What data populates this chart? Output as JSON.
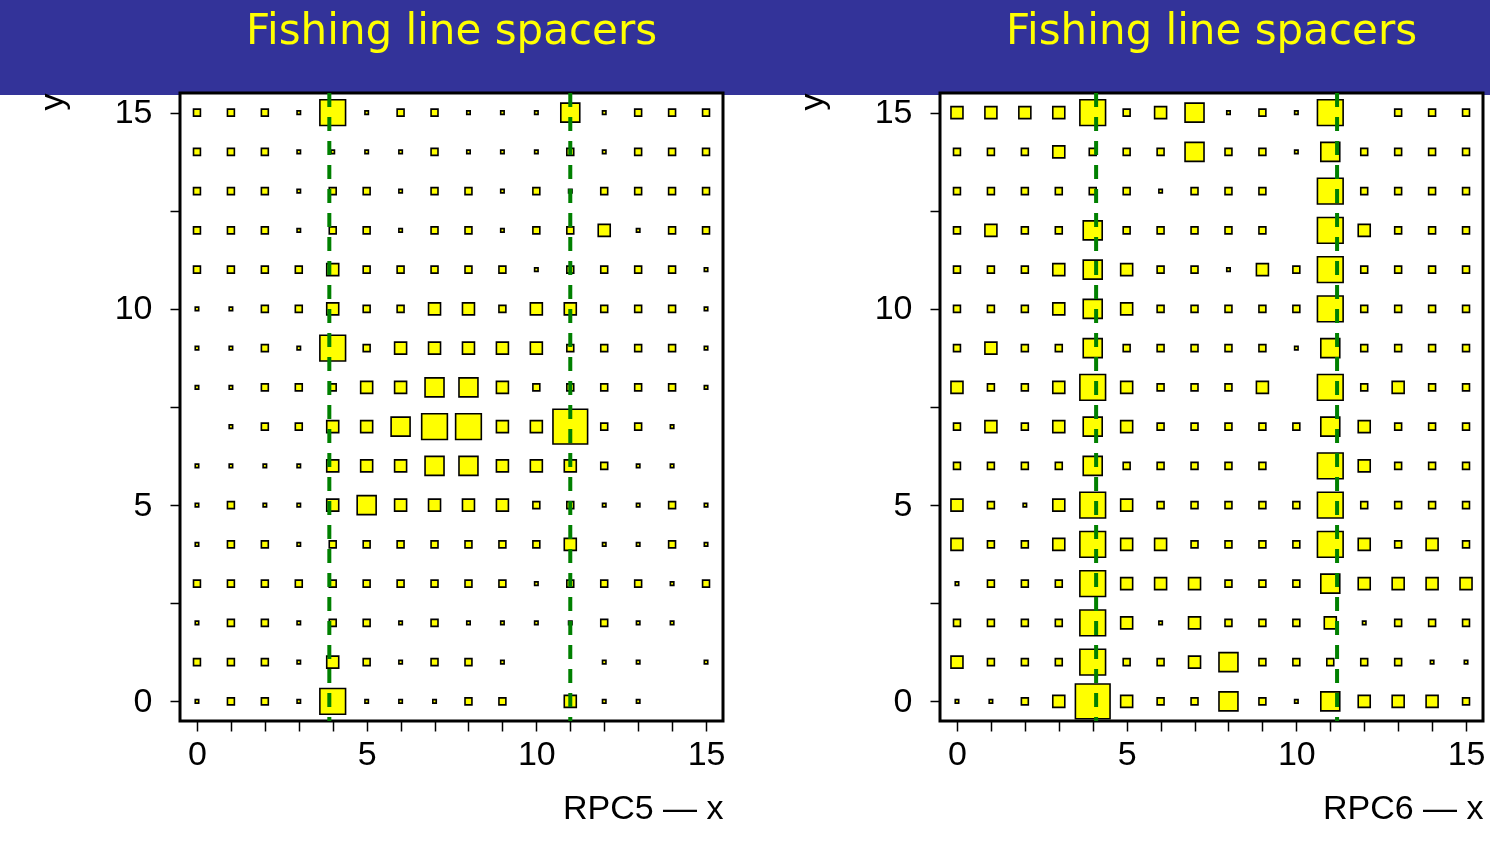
{
  "chart_data": [
    {
      "type": "bubble",
      "title": "Fishing line spacers",
      "xlabel": "RPC5 — x",
      "ylabel": "y",
      "marker": "square",
      "grid": false,
      "legend": false,
      "xlim": [
        -0.5,
        15.5
      ],
      "ylim": [
        -0.5,
        15.5
      ],
      "xticks": [
        0,
        {
          "value": 1,
          "label": null
        },
        {
          "value": 2,
          "label": null
        },
        {
          "value": 3,
          "label": null
        },
        {
          "value": 4,
          "label": null
        },
        5,
        {
          "value": 6,
          "label": null
        },
        {
          "value": 7,
          "label": null
        },
        {
          "value": 8,
          "label": null
        },
        {
          "value": 9,
          "label": null
        },
        10,
        {
          "value": 11,
          "label": null
        },
        {
          "value": 12,
          "label": null
        },
        {
          "value": 13,
          "label": null
        },
        {
          "value": 14,
          "label": null
        },
        15
      ],
      "yticks": [
        0,
        {
          "value": 2.5,
          "label": null
        },
        5,
        {
          "value": 7.5,
          "label": null
        },
        10,
        {
          "value": 12.5,
          "label": null
        },
        15
      ],
      "ref_lines": [
        {
          "axis": "x",
          "value": 3.9,
          "color": "#008000",
          "line_style": "dashed"
        },
        {
          "axis": "x",
          "value": 11.0,
          "color": "#008000",
          "line_style": "dashed"
        }
      ],
      "series": [
        {
          "color": "#ffff00",
          "x": [
            0,
            1,
            2,
            3,
            4,
            5,
            6,
            7,
            8,
            9,
            10,
            11,
            12,
            13,
            14,
            15,
            0,
            1,
            2,
            3,
            4,
            5,
            6,
            7,
            8,
            9,
            10,
            11,
            12,
            13,
            14,
            15,
            0,
            1,
            2,
            3,
            4,
            5,
            6,
            7,
            8,
            9,
            10,
            11,
            12,
            13,
            14,
            15,
            0,
            1,
            2,
            3,
            4,
            5,
            6,
            7,
            8,
            9,
            10,
            11,
            12,
            13,
            14,
            15,
            0,
            1,
            2,
            3,
            4,
            5,
            6,
            7,
            8,
            9,
            10,
            11,
            12,
            13,
            14,
            15,
            0,
            1,
            2,
            3,
            4,
            5,
            6,
            7,
            8,
            9,
            10,
            11,
            12,
            13,
            14,
            15,
            0,
            1,
            2,
            3,
            4,
            5,
            6,
            7,
            8,
            9,
            10,
            11,
            12,
            13,
            14,
            15,
            0,
            1,
            2,
            3,
            4,
            5,
            6,
            7,
            8,
            9,
            10,
            11,
            12,
            13,
            14,
            15,
            1,
            2,
            3,
            4,
            5,
            6,
            7,
            8,
            9,
            10,
            11,
            12,
            13,
            14,
            0,
            1,
            2,
            3,
            4,
            5,
            6,
            7,
            8,
            9,
            10,
            11,
            12,
            13,
            14,
            0,
            1,
            2,
            3,
            4,
            5,
            6,
            7,
            8,
            9,
            10,
            11,
            12,
            13,
            14,
            15,
            0,
            1,
            2,
            3,
            4,
            5,
            6,
            7,
            8,
            9,
            10,
            11,
            12,
            13,
            14,
            15,
            0,
            1,
            2,
            3,
            4,
            5,
            6,
            7,
            8,
            9,
            10,
            11,
            12,
            13,
            14,
            15,
            0,
            1,
            2,
            3,
            4,
            5,
            6,
            7,
            8,
            9,
            10,
            11,
            12,
            13,
            14,
            0,
            1,
            2,
            3,
            4,
            5,
            6,
            7,
            8,
            9,
            12,
            13,
            15,
            0,
            1,
            2,
            3,
            4,
            5,
            6,
            7,
            8,
            9,
            11,
            12,
            13
          ],
          "values": [
            15,
            15,
            15,
            15,
            15,
            15,
            15,
            15,
            15,
            15,
            15,
            15,
            15,
            15,
            15,
            15,
            14,
            14,
            14,
            14,
            14,
            14,
            14,
            14,
            14,
            14,
            14,
            14,
            14,
            14,
            14,
            14,
            13,
            13,
            13,
            13,
            13,
            13,
            13,
            13,
            13,
            13,
            13,
            13,
            13,
            13,
            13,
            13,
            12,
            12,
            12,
            12,
            12,
            12,
            12,
            12,
            12,
            12,
            12,
            12,
            12,
            12,
            12,
            12,
            11,
            11,
            11,
            11,
            11,
            11,
            11,
            11,
            11,
            11,
            11,
            11,
            11,
            11,
            11,
            11,
            10,
            10,
            10,
            10,
            10,
            10,
            10,
            10,
            10,
            10,
            10,
            10,
            10,
            10,
            10,
            10,
            9,
            9,
            9,
            9,
            9,
            9,
            9,
            9,
            9,
            9,
            9,
            9,
            9,
            9,
            9,
            9,
            8,
            8,
            8,
            8,
            8,
            8,
            8,
            8,
            8,
            8,
            8,
            8,
            8,
            8,
            8,
            8,
            7,
            7,
            7,
            7,
            7,
            7,
            7,
            7,
            7,
            7,
            7,
            7,
            7,
            7,
            6,
            6,
            6,
            6,
            6,
            6,
            6,
            6,
            6,
            6,
            6,
            6,
            6,
            6,
            6,
            5,
            5,
            5,
            5,
            5,
            5,
            5,
            5,
            5,
            5,
            5,
            5,
            5,
            5,
            5,
            5,
            4,
            4,
            4,
            4,
            4,
            4,
            4,
            4,
            4,
            4,
            4,
            4,
            4,
            4,
            4,
            4,
            3,
            3,
            3,
            3,
            3,
            3,
            3,
            3,
            3,
            3,
            3,
            3,
            3,
            3,
            3,
            3,
            2,
            2,
            2,
            2,
            2,
            2,
            2,
            2,
            2,
            2,
            2,
            2,
            2,
            2,
            2,
            1,
            1,
            1,
            1,
            1,
            1,
            1,
            1,
            1,
            1,
            1,
            1,
            1,
            0,
            0,
            0,
            0,
            0,
            0,
            0,
            0,
            0,
            0,
            0,
            0,
            0
          ],
          "sizes": [
            0.04,
            0.04,
            0.04,
            0.01,
            0.55,
            0.01,
            0.04,
            0.04,
            0.01,
            0.01,
            0.01,
            0.3,
            0.01,
            0.04,
            0.04,
            0.04,
            0.04,
            0.04,
            0.04,
            0.01,
            0.01,
            0.01,
            0.01,
            0.04,
            0.01,
            0.01,
            0.01,
            0.04,
            0.01,
            0.04,
            0.04,
            0.04,
            0.04,
            0.04,
            0.04,
            0.01,
            0.04,
            0.04,
            0.01,
            0.04,
            0.04,
            0.01,
            0.04,
            0.01,
            0.04,
            0.04,
            0.04,
            0.04,
            0.04,
            0.04,
            0.04,
            0.01,
            0.04,
            0.04,
            0.01,
            0.04,
            0.04,
            0.01,
            0.04,
            0.04,
            0.12,
            0.01,
            0.04,
            0.04,
            0.04,
            0.04,
            0.04,
            0.04,
            0.12,
            0.04,
            0.04,
            0.04,
            0.04,
            0.04,
            0.01,
            0.04,
            0.04,
            0.04,
            0.04,
            0.01,
            0.01,
            0.01,
            0.04,
            0.04,
            0.12,
            0.04,
            0.04,
            0.12,
            0.12,
            0.04,
            0.12,
            0.12,
            0.04,
            0.04,
            0.04,
            0.01,
            0.01,
            0.01,
            0.04,
            0.01,
            0.55,
            0.04,
            0.12,
            0.12,
            0.12,
            0.12,
            0.12,
            0.04,
            0.04,
            0.04,
            0.04,
            0.01,
            0.01,
            0.01,
            0.04,
            0.04,
            0.04,
            0.12,
            0.12,
            0.3,
            0.3,
            0.12,
            0.04,
            0.04,
            0.04,
            0.04,
            0.04,
            0.01,
            0.01,
            0.04,
            0.04,
            0.12,
            0.12,
            0.3,
            0.55,
            0.55,
            0.12,
            0.12,
            1,
            0.04,
            0.04,
            0.01,
            0.01,
            0.01,
            0.01,
            0.01,
            0.12,
            0.12,
            0.12,
            0.3,
            0.3,
            0.12,
            0.12,
            0.12,
            0.04,
            0.01,
            0.01,
            0.01,
            0.04,
            0.01,
            0.01,
            0.12,
            0.3,
            0.12,
            0.12,
            0.12,
            0.12,
            0.04,
            0.04,
            0.01,
            0.01,
            0.04,
            0.01,
            0.01,
            0.04,
            0.04,
            0.01,
            0.04,
            0.04,
            0.04,
            0.04,
            0.04,
            0.04,
            0.04,
            0.12,
            0.01,
            0.01,
            0.04,
            0.01,
            0.04,
            0.04,
            0.04,
            0.04,
            0.04,
            0.04,
            0.04,
            0.04,
            0.04,
            0.04,
            0.01,
            0.04,
            0.04,
            0.04,
            0.01,
            0.04,
            0.01,
            0.04,
            0.04,
            0.01,
            0.04,
            0.04,
            0.01,
            0.04,
            0.01,
            0.01,
            0.01,
            0.01,
            0.04,
            0.01,
            0.01,
            0.04,
            0.04,
            0.04,
            0.01,
            0.12,
            0.04,
            0.01,
            0.04,
            0.04,
            0.01,
            0.01,
            0.01,
            0.01,
            0.01,
            0.04,
            0.04,
            0.01,
            0.55,
            0.01,
            0.01,
            0.01,
            0.04,
            0.04,
            0.12,
            0.01,
            0.01
          ]
        }
      ]
    },
    {
      "type": "bubble",
      "title": "Fishing line spacers",
      "xlabel": "RPC6 — x",
      "ylabel": "y",
      "marker": "square",
      "grid": false,
      "legend": false,
      "xlim": [
        -0.5,
        15.5
      ],
      "ylim": [
        -0.5,
        15.5
      ],
      "xticks": [
        0,
        {
          "value": 1,
          "label": null
        },
        {
          "value": 2,
          "label": null
        },
        {
          "value": 3,
          "label": null
        },
        {
          "value": 4,
          "label": null
        },
        5,
        {
          "value": 6,
          "label": null
        },
        {
          "value": 7,
          "label": null
        },
        {
          "value": 8,
          "label": null
        },
        {
          "value": 9,
          "label": null
        },
        10,
        {
          "value": 11,
          "label": null
        },
        {
          "value": 12,
          "label": null
        },
        {
          "value": 13,
          "label": null
        },
        {
          "value": 14,
          "label": null
        },
        15
      ],
      "yticks": [
        0,
        {
          "value": 2.5,
          "label": null
        },
        5,
        {
          "value": 7.5,
          "label": null
        },
        10,
        {
          "value": 12.5,
          "label": null
        },
        15
      ],
      "ref_lines": [
        {
          "axis": "x",
          "value": 4.1,
          "color": "#008000",
          "line_style": "dashed"
        },
        {
          "axis": "x",
          "value": 11.2,
          "color": "#008000",
          "line_style": "dashed"
        }
      ],
      "series": [
        {
          "color": "#ffff00",
          "x": [
            0,
            1,
            2,
            3,
            4,
            5,
            6,
            7,
            8,
            9,
            10,
            11,
            13,
            14,
            15,
            0,
            1,
            2,
            3,
            4,
            5,
            6,
            7,
            8,
            9,
            10,
            11,
            12,
            13,
            14,
            15,
            0,
            1,
            2,
            3,
            4,
            5,
            6,
            7,
            8,
            9,
            11,
            12,
            13,
            14,
            15,
            0,
            1,
            2,
            3,
            4,
            5,
            6,
            7,
            8,
            9,
            11,
            12,
            13,
            14,
            15,
            0,
            1,
            2,
            3,
            4,
            5,
            6,
            7,
            8,
            9,
            10,
            11,
            12,
            13,
            14,
            15,
            0,
            1,
            2,
            3,
            4,
            5,
            6,
            7,
            8,
            9,
            10,
            11,
            12,
            13,
            14,
            15,
            0,
            1,
            2,
            3,
            4,
            5,
            6,
            7,
            8,
            9,
            10,
            11,
            12,
            13,
            14,
            15,
            0,
            1,
            2,
            3,
            4,
            5,
            6,
            7,
            8,
            9,
            11,
            12,
            13,
            14,
            15,
            0,
            1,
            2,
            3,
            4,
            5,
            6,
            7,
            8,
            9,
            10,
            11,
            12,
            13,
            14,
            15,
            0,
            1,
            2,
            3,
            4,
            5,
            6,
            7,
            8,
            9,
            11,
            12,
            13,
            14,
            15,
            0,
            1,
            2,
            3,
            4,
            5,
            6,
            7,
            8,
            9,
            10,
            11,
            12,
            13,
            14,
            15,
            0,
            1,
            2,
            3,
            4,
            5,
            6,
            7,
            8,
            9,
            10,
            11,
            12,
            13,
            14,
            15,
            0,
            1,
            2,
            3,
            4,
            5,
            6,
            7,
            8,
            9,
            10,
            11,
            12,
            13,
            14,
            15,
            0,
            1,
            2,
            3,
            4,
            5,
            6,
            7,
            8,
            9,
            10,
            11,
            12,
            13,
            14,
            15,
            0,
            1,
            2,
            3,
            4,
            5,
            6,
            7,
            8,
            9,
            10,
            11,
            12,
            13,
            14,
            15,
            0,
            1,
            2,
            3,
            4,
            5,
            6,
            7,
            8,
            9,
            10,
            11,
            12,
            13,
            14,
            15
          ],
          "values": [
            15,
            15,
            15,
            15,
            15,
            15,
            15,
            15,
            15,
            15,
            15,
            15,
            15,
            15,
            15,
            14,
            14,
            14,
            14,
            14,
            14,
            14,
            14,
            14,
            14,
            14,
            14,
            14,
            14,
            14,
            14,
            13,
            13,
            13,
            13,
            13,
            13,
            13,
            13,
            13,
            13,
            13,
            13,
            13,
            13,
            13,
            12,
            12,
            12,
            12,
            12,
            12,
            12,
            12,
            12,
            12,
            12,
            12,
            12,
            12,
            12,
            11,
            11,
            11,
            11,
            11,
            11,
            11,
            11,
            11,
            11,
            11,
            11,
            11,
            11,
            11,
            11,
            10,
            10,
            10,
            10,
            10,
            10,
            10,
            10,
            10,
            10,
            10,
            10,
            10,
            10,
            10,
            10,
            9,
            9,
            9,
            9,
            9,
            9,
            9,
            9,
            9,
            9,
            9,
            9,
            9,
            9,
            9,
            9,
            8,
            8,
            8,
            8,
            8,
            8,
            8,
            8,
            8,
            8,
            8,
            8,
            8,
            8,
            8,
            7,
            7,
            7,
            7,
            7,
            7,
            7,
            7,
            7,
            7,
            7,
            7,
            7,
            7,
            7,
            7,
            6,
            6,
            6,
            6,
            6,
            6,
            6,
            6,
            6,
            6,
            6,
            6,
            6,
            6,
            6,
            5,
            5,
            5,
            5,
            5,
            5,
            5,
            5,
            5,
            5,
            5,
            5,
            5,
            5,
            5,
            5,
            4,
            4,
            4,
            4,
            4,
            4,
            4,
            4,
            4,
            4,
            4,
            4,
            4,
            4,
            4,
            4,
            3,
            3,
            3,
            3,
            3,
            3,
            3,
            3,
            3,
            3,
            3,
            3,
            3,
            3,
            3,
            3,
            2,
            2,
            2,
            2,
            2,
            2,
            2,
            2,
            2,
            2,
            2,
            2,
            2,
            2,
            2,
            2,
            1,
            1,
            1,
            1,
            1,
            1,
            1,
            1,
            1,
            1,
            1,
            1,
            1,
            1,
            1,
            1,
            0,
            0,
            0,
            0,
            0,
            0,
            0,
            0,
            0,
            0,
            0,
            0,
            0,
            0,
            0,
            0
          ],
          "sizes": [
            0.12,
            0.12,
            0.12,
            0.12,
            0.55,
            0.04,
            0.12,
            0.3,
            0.01,
            0.04,
            0.01,
            0.55,
            0.04,
            0.04,
            0.04,
            0.04,
            0.04,
            0.04,
            0.12,
            0.04,
            0.04,
            0.04,
            0.3,
            0.04,
            0.04,
            0.01,
            0.3,
            0.04,
            0.04,
            0.04,
            0.04,
            0.04,
            0.04,
            0.04,
            0.04,
            0.04,
            0.04,
            0.01,
            0.04,
            0.04,
            0.04,
            0.55,
            0.04,
            0.04,
            0.04,
            0.04,
            0.04,
            0.12,
            0.04,
            0.04,
            0.3,
            0.04,
            0.04,
            0.04,
            0.04,
            0.04,
            0.55,
            0.12,
            0.04,
            0.04,
            0.04,
            0.04,
            0.04,
            0.04,
            0.12,
            0.3,
            0.12,
            0.04,
            0.04,
            0.01,
            0.12,
            0.04,
            0.55,
            0.04,
            0.04,
            0.04,
            0.04,
            0.04,
            0.04,
            0.04,
            0.12,
            0.3,
            0.12,
            0.04,
            0.04,
            0.04,
            0.04,
            0.04,
            0.55,
            0.04,
            0.04,
            0.04,
            0.04,
            0.04,
            0.12,
            0.04,
            0.04,
            0.3,
            0.04,
            0.04,
            0.04,
            0.04,
            0.04,
            0.01,
            0.3,
            0.04,
            0.04,
            0.04,
            0.04,
            0.12,
            0.04,
            0.04,
            0.12,
            0.55,
            0.12,
            0.04,
            0.04,
            0.04,
            0.12,
            0.55,
            0.04,
            0.12,
            0.04,
            0.04,
            0.04,
            0.12,
            0.04,
            0.12,
            0.3,
            0.12,
            0.04,
            0.04,
            0.04,
            0.04,
            0.04,
            0.3,
            0.12,
            0.04,
            0.04,
            0.04,
            0.04,
            0.04,
            0.04,
            0.04,
            0.3,
            0.04,
            0.04,
            0.04,
            0.04,
            0.04,
            0.55,
            0.12,
            0.04,
            0.04,
            0.04,
            0.12,
            0.04,
            0.01,
            0.12,
            0.55,
            0.12,
            0.04,
            0.04,
            0.04,
            0.04,
            0.04,
            0.55,
            0.04,
            0.04,
            0.04,
            0.04,
            0.12,
            0.04,
            0.04,
            0.12,
            0.55,
            0.12,
            0.12,
            0.04,
            0.04,
            0.04,
            0.04,
            0.55,
            0.12,
            0.04,
            0.12,
            0.04,
            0.01,
            0.04,
            0.04,
            0.04,
            0.55,
            0.12,
            0.12,
            0.12,
            0.04,
            0.04,
            0.04,
            0.3,
            0.12,
            0.12,
            0.12,
            0.12,
            0.04,
            0.04,
            0.04,
            0.04,
            0.55,
            0.12,
            0.01,
            0.12,
            0.04,
            0.04,
            0.04,
            0.12,
            0.01,
            0.04,
            0.04,
            0.04,
            0.12,
            0.04,
            0.04,
            0.04,
            0.55,
            0.04,
            0.04,
            0.12,
            0.3,
            0.04,
            0.04,
            0.04,
            0.04,
            0.04,
            0.01,
            0.01,
            0.01,
            0.01,
            0.04,
            0.12,
            1,
            0.12,
            0.04,
            0.04,
            0.3,
            0.04,
            0.01,
            0.3,
            0.12,
            0.12,
            0.12,
            0.04
          ]
        }
      ]
    }
  ]
}
